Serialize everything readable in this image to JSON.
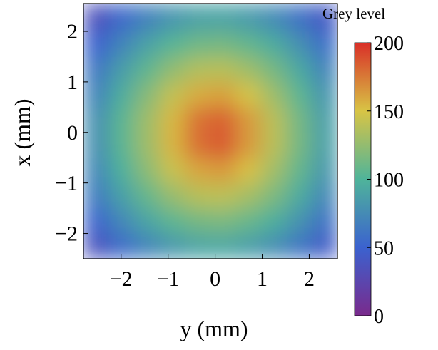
{
  "chart_data": {
    "type": "heatmap",
    "xlabel": "y (mm)",
    "ylabel": "x (mm)",
    "colorbar_label": "Grey level",
    "x_bins": [
      -2.8,
      -2.26,
      -1.72,
      -1.18,
      -0.64,
      -0.1,
      0.44,
      0.98,
      1.52,
      2.06,
      2.6
    ],
    "y_bins": [
      -2.5,
      -2,
      -1.5,
      -1,
      -0.5,
      0,
      0.5,
      1,
      1.5,
      2,
      2.55
    ],
    "z": [
      [
        37,
        56,
        71,
        83,
        91,
        92,
        87,
        77,
        62,
        44
      ],
      [
        52,
        73,
        91,
        105,
        114,
        116,
        109,
        97,
        80,
        60
      ],
      [
        65,
        88,
        108,
        126,
        138,
        140,
        131,
        116,
        95,
        73
      ],
      [
        73,
        98,
        122,
        144,
        160,
        164,
        151,
        130,
        107,
        83
      ],
      [
        78,
        104,
        129,
        155,
        179,
        186,
        164,
        139,
        114,
        88
      ],
      [
        78,
        104,
        129,
        154,
        178,
        184,
        164,
        139,
        113,
        87
      ],
      [
        71,
        96,
        120,
        142,
        158,
        162,
        149,
        128,
        105,
        81
      ],
      [
        63,
        86,
        106,
        124,
        136,
        138,
        129,
        114,
        93,
        71
      ],
      [
        50,
        71,
        89,
        103,
        112,
        114,
        107,
        95,
        78,
        58
      ],
      [
        35,
        54,
        69,
        81,
        89,
        90,
        85,
        75,
        60,
        42
      ]
    ],
    "xlim": [
      -2.8,
      2.6
    ],
    "ylim": [
      -2.5,
      2.55
    ],
    "xticks": [
      {
        "value": -2,
        "label": "−2"
      },
      {
        "value": -1,
        "label": "−1"
      },
      0,
      1,
      2
    ],
    "yticks": [
      {
        "value": -2,
        "label": "−2"
      },
      {
        "value": -1,
        "label": "−1"
      },
      0,
      1,
      2
    ],
    "clim": [
      0,
      200
    ],
    "cticks": [
      0,
      50,
      100,
      150,
      200
    ],
    "colormap": [
      "#7a2a8c",
      "#3b62cf",
      "#4fb49a",
      "#d8c445",
      "#d92f28"
    ]
  }
}
